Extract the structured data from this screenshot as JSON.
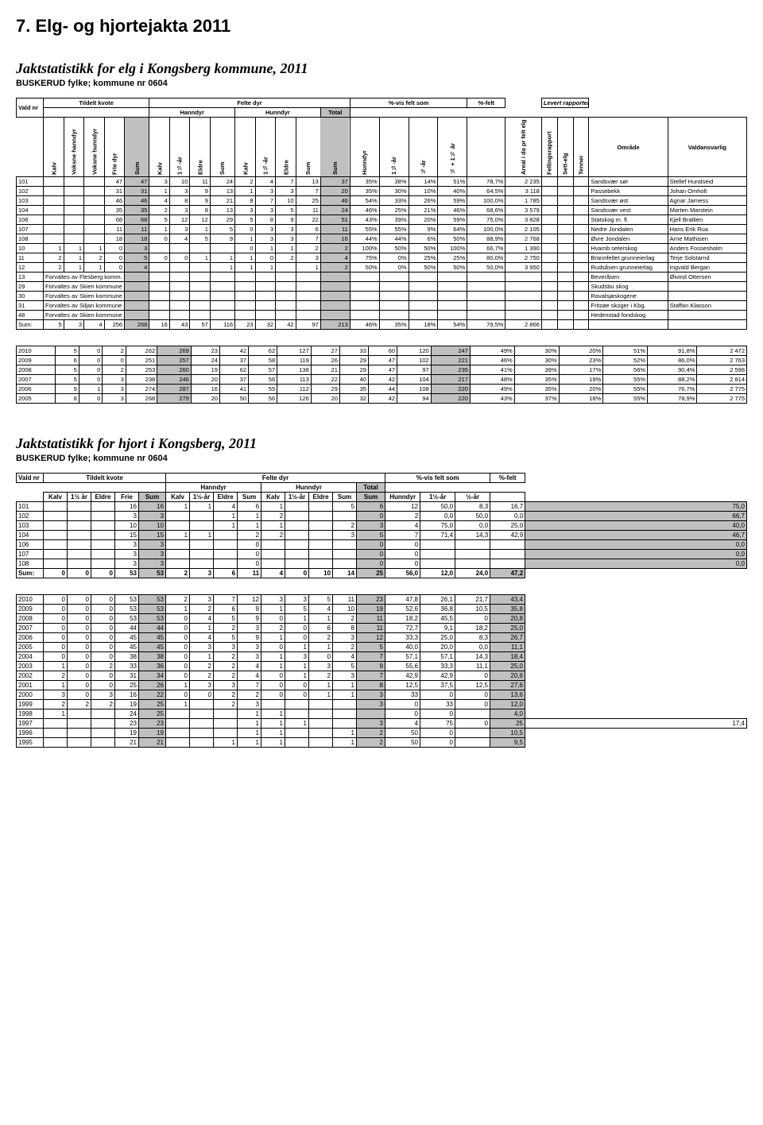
{
  "page_heading": "7. Elg- og hjortejakta 2011",
  "elg": {
    "title": "Jaktstatistikk for elg i Kongsberg kommune, 2011",
    "subtitle": "BUSKERUD fylke; kommune nr 0604",
    "group_headers": {
      "vald_nr": "Vald nr",
      "tildelt": "Tildelt kvote",
      "felte": "Felte dyr",
      "pct_vis": "%-vis felt som",
      "pct_felt": "%-felt",
      "levert": "Levert rapporter",
      "hanndyr": "Hanndyr",
      "hunndyr": "Hunndyr",
      "total": "Total"
    },
    "col_headers": [
      "Kalv",
      "Voksne hanndyr",
      "Voksne hunndyr",
      "Frie dyr",
      "Sum",
      "Kalv",
      "1½-år",
      "Eldre",
      "Sum",
      "Kalv",
      "1½-år",
      "Eldre",
      "Sum",
      "Sum",
      "Hunndyr",
      "1½-år",
      "½-år",
      "½ + 1½ år",
      "",
      "Areal i da pr felt elg",
      "Fellingsrapport",
      "Sett-elg",
      "Tenner",
      "Område",
      "Valdansvarlig"
    ],
    "rows": [
      {
        "nr": "101",
        "c": [
          "",
          "",
          "",
          "47",
          "47",
          "3",
          "10",
          "11",
          "24",
          "2",
          "4",
          "7",
          "13",
          "37",
          "35%",
          "38%",
          "14%",
          "51%",
          "78,7%",
          "2 235",
          "",
          "",
          "",
          "Sandsvær sør",
          "Stellef Hundseid"
        ]
      },
      {
        "nr": "102",
        "c": [
          "",
          "",
          "",
          "31",
          "31",
          "1",
          "3",
          "9",
          "13",
          "1",
          "3",
          "3",
          "7",
          "20",
          "35%",
          "30%",
          "10%",
          "40%",
          "64,5%",
          "3 118",
          "",
          "",
          "",
          "Passebekk",
          "Johan Omholt"
        ]
      },
      {
        "nr": "103",
        "c": [
          "",
          "",
          "",
          "46",
          "46",
          "4",
          "8",
          "9",
          "21",
          "8",
          "7",
          "10",
          "25",
          "46",
          "54%",
          "33%",
          "26%",
          "59%",
          "100,0%",
          "1 785",
          "",
          "",
          "",
          "Sandsvær øst",
          "Agnar Jarness"
        ]
      },
      {
        "nr": "104",
        "c": [
          "",
          "",
          "",
          "35",
          "35",
          "2",
          "3",
          "8",
          "13",
          "3",
          "3",
          "5",
          "11",
          "24",
          "46%",
          "25%",
          "21%",
          "46%",
          "68,6%",
          "3 579",
          "",
          "",
          "",
          "Sandsvær vest",
          "Morten Marstein"
        ]
      },
      {
        "nr": "106",
        "c": [
          "",
          "",
          "",
          "68",
          "68",
          "5",
          "12",
          "12",
          "29",
          "5",
          "8",
          "9",
          "22",
          "51",
          "43%",
          "39%",
          "20%",
          "59%",
          "75,0%",
          "3 828",
          "",
          "",
          "",
          "Statskog m. fl.",
          "Kjell Bratlien"
        ]
      },
      {
        "nr": "107",
        "c": [
          "",
          "",
          "",
          "11",
          "11",
          "1",
          "3",
          "1",
          "5",
          "0",
          "3",
          "3",
          "6",
          "11",
          "55%",
          "55%",
          "9%",
          "64%",
          "100,0%",
          "2 105",
          "",
          "",
          "",
          "Nedre Jondalen",
          "Hans Erik Rua"
        ]
      },
      {
        "nr": "108",
        "c": [
          "",
          "",
          "",
          "18",
          "18",
          "0",
          "4",
          "5",
          "9",
          "1",
          "3",
          "3",
          "7",
          "16",
          "44%",
          "44%",
          "6%",
          "50%",
          "88,9%",
          "2 768",
          "",
          "",
          "",
          "Øvre Jondalen",
          "Arne Mathisen"
        ]
      },
      {
        "nr": "10",
        "c": [
          "1",
          "1",
          "1",
          "0",
          "3",
          "",
          "",
          "",
          "",
          "0",
          "1",
          "1",
          "2",
          "2",
          "100%",
          "50%",
          "50%",
          "100%",
          "66,7%",
          "1 390",
          "",
          "",
          "",
          "Hvamb seterskog",
          "Anders Fossesholm"
        ]
      },
      {
        "nr": "11",
        "c": [
          "2",
          "1",
          "2",
          "0",
          "5",
          "0",
          "0",
          "1",
          "1",
          "1",
          "0",
          "2",
          "3",
          "4",
          "75%",
          "0%",
          "25%",
          "25%",
          "80,0%",
          "2 750",
          "",
          "",
          "",
          "Brannfeltet grunneierlag",
          "Terje Solstarnd"
        ]
      },
      {
        "nr": "12",
        "c": [
          "2",
          "1",
          "1",
          "0",
          "4",
          "",
          "",
          "",
          "1",
          "1",
          "1",
          "",
          "1",
          "2",
          "50%",
          "0%",
          "50%",
          "50%",
          "50,0%",
          "3 950",
          "",
          "",
          "",
          "Rudsåsen grunneierlag",
          "Ingvald Bergan"
        ]
      },
      {
        "nr": "13",
        "note": "Forvaltes av Flesberg komm.",
        "c": [
          "",
          "",
          "",
          "",
          "",
          "",
          "",
          "",
          "",
          "",
          "",
          "",
          "",
          "",
          "",
          "",
          "",
          "",
          "",
          "",
          "",
          "",
          "",
          "Beveråsen",
          "Øivind Ottersen"
        ]
      },
      {
        "nr": "29",
        "note": "Forvaltes av Skien kommune",
        "c": [
          "",
          "",
          "",
          "",
          "",
          "",
          "",
          "",
          "",
          "",
          "",
          "",
          "",
          "",
          "",
          "",
          "",
          "",
          "",
          "",
          "",
          "",
          "",
          "Skudsbu skog",
          ""
        ]
      },
      {
        "nr": "30",
        "note": "Forvaltes av Skien kommune",
        "c": [
          "",
          "",
          "",
          "",
          "",
          "",
          "",
          "",
          "",
          "",
          "",
          "",
          "",
          "",
          "",
          "",
          "",
          "",
          "",
          "",
          "",
          "",
          "",
          "Ravalsjøskogene",
          ""
        ]
      },
      {
        "nr": "31",
        "note": "Forvaltes av Siljan kommune",
        "c": [
          "",
          "",
          "",
          "",
          "",
          "",
          "",
          "",
          "",
          "",
          "",
          "",
          "",
          "",
          "",
          "",
          "",
          "",
          "",
          "",
          "",
          "",
          "",
          "Fritzøe skoger i Kbg.",
          "Staffan Klasson"
        ]
      },
      {
        "nr": "48",
        "note": "Forvaltes av Skien kommune",
        "c": [
          "",
          "",
          "",
          "",
          "",
          "",
          "",
          "",
          "",
          "",
          "",
          "",
          "",
          "",
          "",
          "",
          "",
          "",
          "",
          "",
          "",
          "",
          "",
          "Hedenstad fondskog",
          ""
        ]
      }
    ],
    "sum_row": {
      "label": "Sum:",
      "c": [
        "5",
        "3",
        "4",
        "256",
        "268",
        "16",
        "43",
        "57",
        "116",
        "23",
        "32",
        "42",
        "97",
        "213",
        "46%",
        "35%",
        "18%",
        "54%",
        "79,5%",
        "2 866",
        "",
        "",
        "",
        "",
        ""
      ]
    },
    "year_rows": [
      {
        "y": "2010",
        "c": [
          "5",
          "0",
          "2",
          "262",
          "269",
          "23",
          "42",
          "62",
          "127",
          "27",
          "33",
          "60",
          "120",
          "247",
          "49%",
          "30%",
          "20%",
          "51%",
          "91,8%",
          "2 472"
        ]
      },
      {
        "y": "2009",
        "c": [
          "6",
          "0",
          "0",
          "251",
          "257",
          "24",
          "37",
          "58",
          "119",
          "26",
          "29",
          "47",
          "102",
          "221",
          "46%",
          "30%",
          "23%",
          "52%",
          "86,0%",
          "2 763"
        ]
      },
      {
        "y": "2008",
        "c": [
          "5",
          "0",
          "2",
          "253",
          "260",
          "19",
          "62",
          "57",
          "138",
          "21",
          "29",
          "47",
          "97",
          "235",
          "41%",
          "39%",
          "17%",
          "56%",
          "90,4%",
          "2 598"
        ]
      },
      {
        "y": "2007",
        "c": [
          "5",
          "0",
          "3",
          "238",
          "246",
          "20",
          "37",
          "56",
          "113",
          "22",
          "40",
          "42",
          "104",
          "217",
          "48%",
          "35%",
          "19%",
          "55%",
          "88,2%",
          "2 814"
        ]
      },
      {
        "y": "2006",
        "c": [
          "9",
          "1",
          "3",
          "274",
          "287",
          "16",
          "41",
          "55",
          "112",
          "29",
          "35",
          "44",
          "108",
          "220",
          "49%",
          "35%",
          "20%",
          "55%",
          "76,7%",
          "2 775"
        ]
      },
      {
        "y": "2005",
        "c": [
          "8",
          "0",
          "3",
          "268",
          "279",
          "20",
          "50",
          "56",
          "126",
          "20",
          "32",
          "42",
          "94",
          "220",
          "43%",
          "37%",
          "18%",
          "55%",
          "78,9%",
          "2 775"
        ]
      }
    ]
  },
  "hjort": {
    "title": "Jaktstatistikk for hjort i Kongsberg, 2011",
    "subtitle": "BUSKERUD fylke; kommune nr 0604",
    "group_headers": {
      "vald_nr": "Vald nr",
      "tildelt": "Tildelt kvote",
      "felte": "Felte dyr",
      "pct_vis": "%-vis felt som",
      "pct_felt": "%-felt",
      "hanndyr": "Hanndyr",
      "hunndyr": "Hunndyr",
      "total": "Total"
    },
    "col_headers": [
      "Kalv",
      "1½ år",
      "Eldre",
      "Frie",
      "Sum",
      "Kalv",
      "1½-år",
      "Eldre",
      "Sum",
      "Kalv",
      "1½-år",
      "Eldre",
      "Sum",
      "Sum",
      "Hunndyr",
      "1½-år",
      "½-år",
      ""
    ],
    "rows": [
      {
        "nr": "101",
        "c": [
          "",
          "",
          "",
          "16",
          "16",
          "1",
          "1",
          "4",
          "6",
          "1",
          "",
          "",
          "5",
          "6",
          "12",
          "50,0",
          "8,3",
          "16,7",
          "75,0"
        ]
      },
      {
        "nr": "102",
        "c": [
          "",
          "",
          "",
          "3",
          "3",
          "",
          "",
          "1",
          "1",
          "2",
          "",
          "",
          "",
          "0",
          "2",
          "0,0",
          "50,0",
          "0,0",
          "66,7"
        ]
      },
      {
        "nr": "103",
        "c": [
          "",
          "",
          "",
          "10",
          "10",
          "",
          "",
          "1",
          "1",
          "1",
          "",
          "",
          "2",
          "3",
          "4",
          "75,0",
          "0,0",
          "25,0",
          "40,0"
        ]
      },
      {
        "nr": "104",
        "c": [
          "",
          "",
          "",
          "15",
          "15",
          "1",
          "1",
          "",
          "2",
          "2",
          "",
          "",
          "3",
          "5",
          "7",
          "71,4",
          "14,3",
          "42,9",
          "46,7"
        ]
      },
      {
        "nr": "106",
        "c": [
          "",
          "",
          "",
          "3",
          "3",
          "",
          "",
          "",
          "0",
          "",
          "",
          "",
          "",
          "0",
          "0",
          "",
          "",
          "",
          "0,0"
        ]
      },
      {
        "nr": "107",
        "c": [
          "",
          "",
          "",
          "3",
          "3",
          "",
          "",
          "",
          "0",
          "",
          "",
          "",
          "",
          "0",
          "0",
          "",
          "",
          "",
          "0,0"
        ]
      },
      {
        "nr": "108",
        "c": [
          "",
          "",
          "",
          "3",
          "3",
          "",
          "",
          "",
          "0",
          "",
          "",
          "",
          "",
          "0",
          "0",
          "",
          "",
          "",
          "0,0"
        ]
      }
    ],
    "sum_row": {
      "label": "Sum:",
      "c": [
        "0",
        "0",
        "0",
        "53",
        "53",
        "2",
        "3",
        "6",
        "11",
        "4",
        "0",
        "10",
        "14",
        "25",
        "56,0",
        "12,0",
        "24,0",
        "47,2"
      ]
    },
    "year_rows": [
      {
        "y": "2010",
        "c": [
          "0",
          "0",
          "0",
          "53",
          "53",
          "2",
          "3",
          "7",
          "12",
          "3",
          "3",
          "5",
          "11",
          "23",
          "47,8",
          "26,1",
          "21,7",
          "43,4"
        ]
      },
      {
        "y": "2009",
        "c": [
          "0",
          "0",
          "0",
          "53",
          "53",
          "1",
          "2",
          "6",
          "9",
          "1",
          "5",
          "4",
          "10",
          "19",
          "52,6",
          "36,8",
          "10,5",
          "35,8"
        ]
      },
      {
        "y": "2008",
        "c": [
          "0",
          "0",
          "0",
          "53",
          "53",
          "0",
          "4",
          "5",
          "9",
          "0",
          "1",
          "1",
          "2",
          "11",
          "18,2",
          "45,5",
          "0",
          "20,8"
        ]
      },
      {
        "y": "2007",
        "c": [
          "0",
          "0",
          "0",
          "44",
          "44",
          "0",
          "1",
          "2",
          "3",
          "2",
          "0",
          "6",
          "8",
          "11",
          "72,7",
          "9,1",
          "18,2",
          "25,0"
        ]
      },
      {
        "y": "2006",
        "c": [
          "0",
          "0",
          "0",
          "45",
          "45",
          "0",
          "4",
          "5",
          "9",
          "1",
          "0",
          "2",
          "3",
          "12",
          "33,3",
          "25,0",
          "8,3",
          "26,7"
        ]
      },
      {
        "y": "2005",
        "c": [
          "0",
          "0",
          "0",
          "45",
          "45",
          "0",
          "3",
          "3",
          "3",
          "0",
          "1",
          "1",
          "2",
          "5",
          "40,0",
          "20,0",
          "0,0",
          "11,1"
        ]
      },
      {
        "y": "2004",
        "c": [
          "0",
          "0",
          "0",
          "38",
          "38",
          "0",
          "1",
          "2",
          "3",
          "1",
          "3",
          "0",
          "4",
          "7",
          "57,1",
          "57,1",
          "14,3",
          "18,4"
        ]
      },
      {
        "y": "2003",
        "c": [
          "1",
          "0",
          "2",
          "33",
          "36",
          "0",
          "2",
          "2",
          "4",
          "1",
          "1",
          "3",
          "5",
          "9",
          "55,6",
          "33,3",
          "11,1",
          "25,0"
        ]
      },
      {
        "y": "2002",
        "c": [
          "2",
          "0",
          "0",
          "31",
          "34",
          "0",
          "2",
          "2",
          "4",
          "0",
          "1",
          "2",
          "3",
          "7",
          "42,9",
          "42,9",
          "0",
          "20,6"
        ]
      },
      {
        "y": "2001",
        "c": [
          "1",
          "0",
          "0",
          "25",
          "26",
          "1",
          "3",
          "3",
          "7",
          "0",
          "0",
          "1",
          "1",
          "8",
          "12,5",
          "37,5",
          "12,5",
          "27,6"
        ]
      },
      {
        "y": "2000",
        "c": [
          "3",
          "0",
          "3",
          "16",
          "22",
          "0",
          "0",
          "2",
          "2",
          "0",
          "0",
          "1",
          "1",
          "3",
          "33",
          "0",
          "0",
          "13,6"
        ]
      },
      {
        "y": "1999",
        "c": [
          "2",
          "2",
          "2",
          "19",
          "25",
          "1",
          "",
          "2",
          "3",
          "",
          "",
          "",
          "",
          "3",
          "0",
          "33",
          "0",
          "12,0"
        ]
      },
      {
        "y": "1998",
        "c": [
          "1",
          "",
          "",
          "24",
          "25",
          "",
          "",
          "",
          "1",
          "1",
          "",
          "",
          "",
          "",
          "0",
          "0",
          "",
          "4,0"
        ]
      },
      {
        "y": "1997",
        "c": [
          "",
          "",
          "",
          "23",
          "23",
          "",
          "",
          "",
          "1",
          "1",
          "1",
          "",
          "",
          "3",
          "4",
          "75",
          "0",
          "25",
          "17,4"
        ]
      },
      {
        "y": "1996",
        "c": [
          "",
          "",
          "",
          "19",
          "19",
          "",
          "",
          "",
          "1",
          "1",
          "",
          "",
          "1",
          "2",
          "50",
          "0",
          "",
          "10,5"
        ]
      },
      {
        "y": "1995",
        "c": [
          "",
          "",
          "",
          "21",
          "21",
          "",
          "",
          "1",
          "1",
          "1",
          "",
          "",
          "1",
          "2",
          "50",
          "0",
          "",
          "9,5"
        ]
      }
    ]
  },
  "colors": {
    "grey": "#c0c0c0",
    "text": "#000000",
    "bg": "#ffffff"
  }
}
